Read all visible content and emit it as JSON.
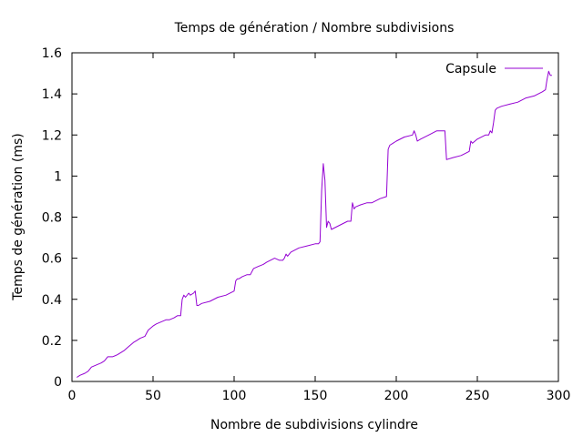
{
  "chart_data": {
    "type": "line",
    "title": "Temps de génération / Nombre subdivisions",
    "xlabel": "Nombre de subdivisions cylindre",
    "ylabel": "Temps de génération (ms)",
    "xlim": [
      0,
      300
    ],
    "ylim": [
      0,
      1.6
    ],
    "xticks": [
      0,
      50,
      100,
      150,
      200,
      250,
      300
    ],
    "yticks": [
      0,
      0.2,
      0.4,
      0.6,
      0.8,
      1,
      1.2,
      1.4,
      1.6
    ],
    "xtick_labels": [
      "0",
      "50",
      "100",
      "150",
      "200",
      "250",
      "300"
    ],
    "ytick_labels": [
      "0",
      "0.2",
      "0.4",
      "0.6",
      "0.8",
      "1",
      "1.2",
      "1.4",
      "1.6"
    ],
    "grid": false,
    "legend_position": "top-right",
    "series": [
      {
        "name": "Capsule",
        "color": "#9400d3",
        "x": [
          3,
          5,
          8,
          10,
          12,
          15,
          18,
          20,
          22,
          25,
          28,
          30,
          32,
          35,
          38,
          40,
          42,
          45,
          47,
          50,
          52,
          55,
          58,
          60,
          63,
          65,
          67,
          68,
          69,
          70,
          72,
          73,
          75,
          76,
          77,
          78,
          80,
          85,
          90,
          95,
          100,
          101,
          102,
          103,
          105,
          108,
          110,
          112,
          115,
          118,
          120,
          125,
          128,
          130,
          131,
          132,
          133,
          135,
          140,
          145,
          150,
          152,
          153,
          154,
          155,
          156,
          157,
          158,
          159,
          160,
          165,
          170,
          172,
          173,
          174,
          175,
          178,
          182,
          185,
          190,
          194,
          195,
          196,
          198,
          200,
          205,
          210,
          211,
          212,
          213,
          215,
          220,
          225,
          229,
          230,
          231,
          235,
          240,
          245,
          246,
          247,
          250,
          255,
          257,
          258,
          259,
          260,
          261,
          262,
          265,
          270,
          275,
          280,
          285,
          290,
          292,
          293,
          294,
          295,
          296
        ],
        "y": [
          0.02,
          0.03,
          0.04,
          0.05,
          0.07,
          0.08,
          0.09,
          0.1,
          0.12,
          0.12,
          0.13,
          0.14,
          0.15,
          0.17,
          0.19,
          0.2,
          0.21,
          0.22,
          0.25,
          0.27,
          0.28,
          0.29,
          0.3,
          0.3,
          0.31,
          0.32,
          0.32,
          0.4,
          0.42,
          0.41,
          0.43,
          0.42,
          0.43,
          0.44,
          0.37,
          0.37,
          0.38,
          0.39,
          0.41,
          0.42,
          0.44,
          0.49,
          0.5,
          0.5,
          0.51,
          0.52,
          0.52,
          0.55,
          0.56,
          0.57,
          0.58,
          0.6,
          0.59,
          0.59,
          0.6,
          0.62,
          0.61,
          0.63,
          0.65,
          0.66,
          0.67,
          0.67,
          0.68,
          0.93,
          1.06,
          0.98,
          0.75,
          0.78,
          0.77,
          0.74,
          0.76,
          0.78,
          0.78,
          0.87,
          0.84,
          0.85,
          0.86,
          0.87,
          0.87,
          0.89,
          0.9,
          1.13,
          1.15,
          1.16,
          1.17,
          1.19,
          1.2,
          1.22,
          1.2,
          1.17,
          1.18,
          1.2,
          1.22,
          1.22,
          1.22,
          1.08,
          1.09,
          1.1,
          1.12,
          1.17,
          1.16,
          1.18,
          1.2,
          1.2,
          1.22,
          1.21,
          1.26,
          1.32,
          1.33,
          1.34,
          1.35,
          1.36,
          1.38,
          1.39,
          1.41,
          1.42,
          1.47,
          1.51,
          1.49,
          1.49
        ]
      }
    ]
  }
}
